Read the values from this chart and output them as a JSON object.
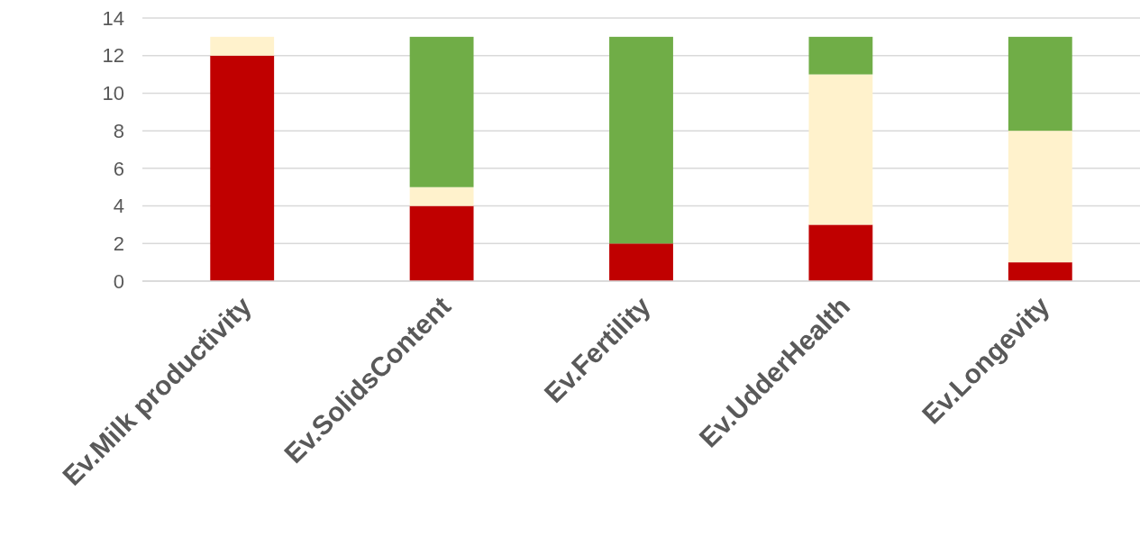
{
  "chart_data": {
    "type": "bar",
    "stacked": true,
    "categories": [
      "Ev.Milk productivity",
      "Ev.SolidsContent",
      "Ev.Fertility",
      "Ev.UdderHealth",
      "Ev.Longevity"
    ],
    "series": [
      {
        "color": "#c00000",
        "values": [
          12,
          4,
          2,
          3,
          1
        ]
      },
      {
        "color": "#fff2cc",
        "values": [
          1,
          1,
          0,
          8,
          7
        ]
      },
      {
        "color": "#70ad47",
        "values": [
          0,
          8,
          11,
          2,
          5
        ]
      }
    ],
    "ylim": [
      0,
      14
    ],
    "yticks": [
      0,
      2,
      4,
      6,
      8,
      10,
      12,
      14
    ],
    "grid": "y"
  }
}
